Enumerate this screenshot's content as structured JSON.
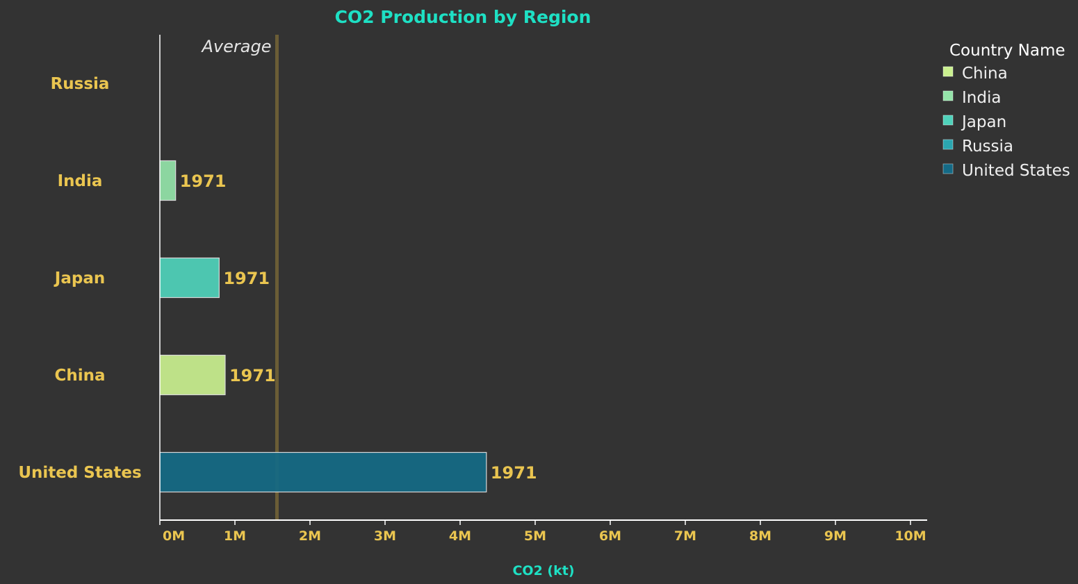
{
  "chart_data": {
    "type": "bar",
    "orientation": "horizontal",
    "title": "CO2 Production by Region",
    "xlabel": "CO2 (kt)",
    "ylabel": "",
    "categories": [
      "Russia",
      "India",
      "Japan",
      "China",
      "United States"
    ],
    "values": [
      0,
      210000,
      790000,
      870000,
      4350000
    ],
    "data_labels": [
      "",
      "1971",
      "1971",
      "1971",
      "1971"
    ],
    "bar_colors": [
      "#2aa6b0",
      "#94e4a9",
      "#4fd2bb",
      "#caf08f",
      "#146a86"
    ],
    "xlim": [
      0,
      10000000
    ],
    "xticks": [
      0,
      1000000,
      2000000,
      3000000,
      4000000,
      5000000,
      6000000,
      7000000,
      8000000,
      9000000,
      10000000
    ],
    "xtick_labels": [
      "0M",
      "1M",
      "2M",
      "3M",
      "4M",
      "5M",
      "6M",
      "7M",
      "8M",
      "9M",
      "10M"
    ],
    "average": 1560000,
    "average_label": "Average",
    "average_color": "#6b5d36",
    "grid": false,
    "legend": {
      "title": "Country Name",
      "placement": "top-right",
      "items": [
        {
          "label": "China",
          "color": "#caf08f"
        },
        {
          "label": "India",
          "color": "#94e4a9"
        },
        {
          "label": "Japan",
          "color": "#4fd2bb"
        },
        {
          "label": "Russia",
          "color": "#2aa6b0"
        },
        {
          "label": "United States",
          "color": "#146a86"
        }
      ]
    },
    "colors": {
      "background": "#333333",
      "title": "#1ee0c4",
      "axis_text": "#eac550",
      "axis_line": "#ffffff"
    }
  }
}
